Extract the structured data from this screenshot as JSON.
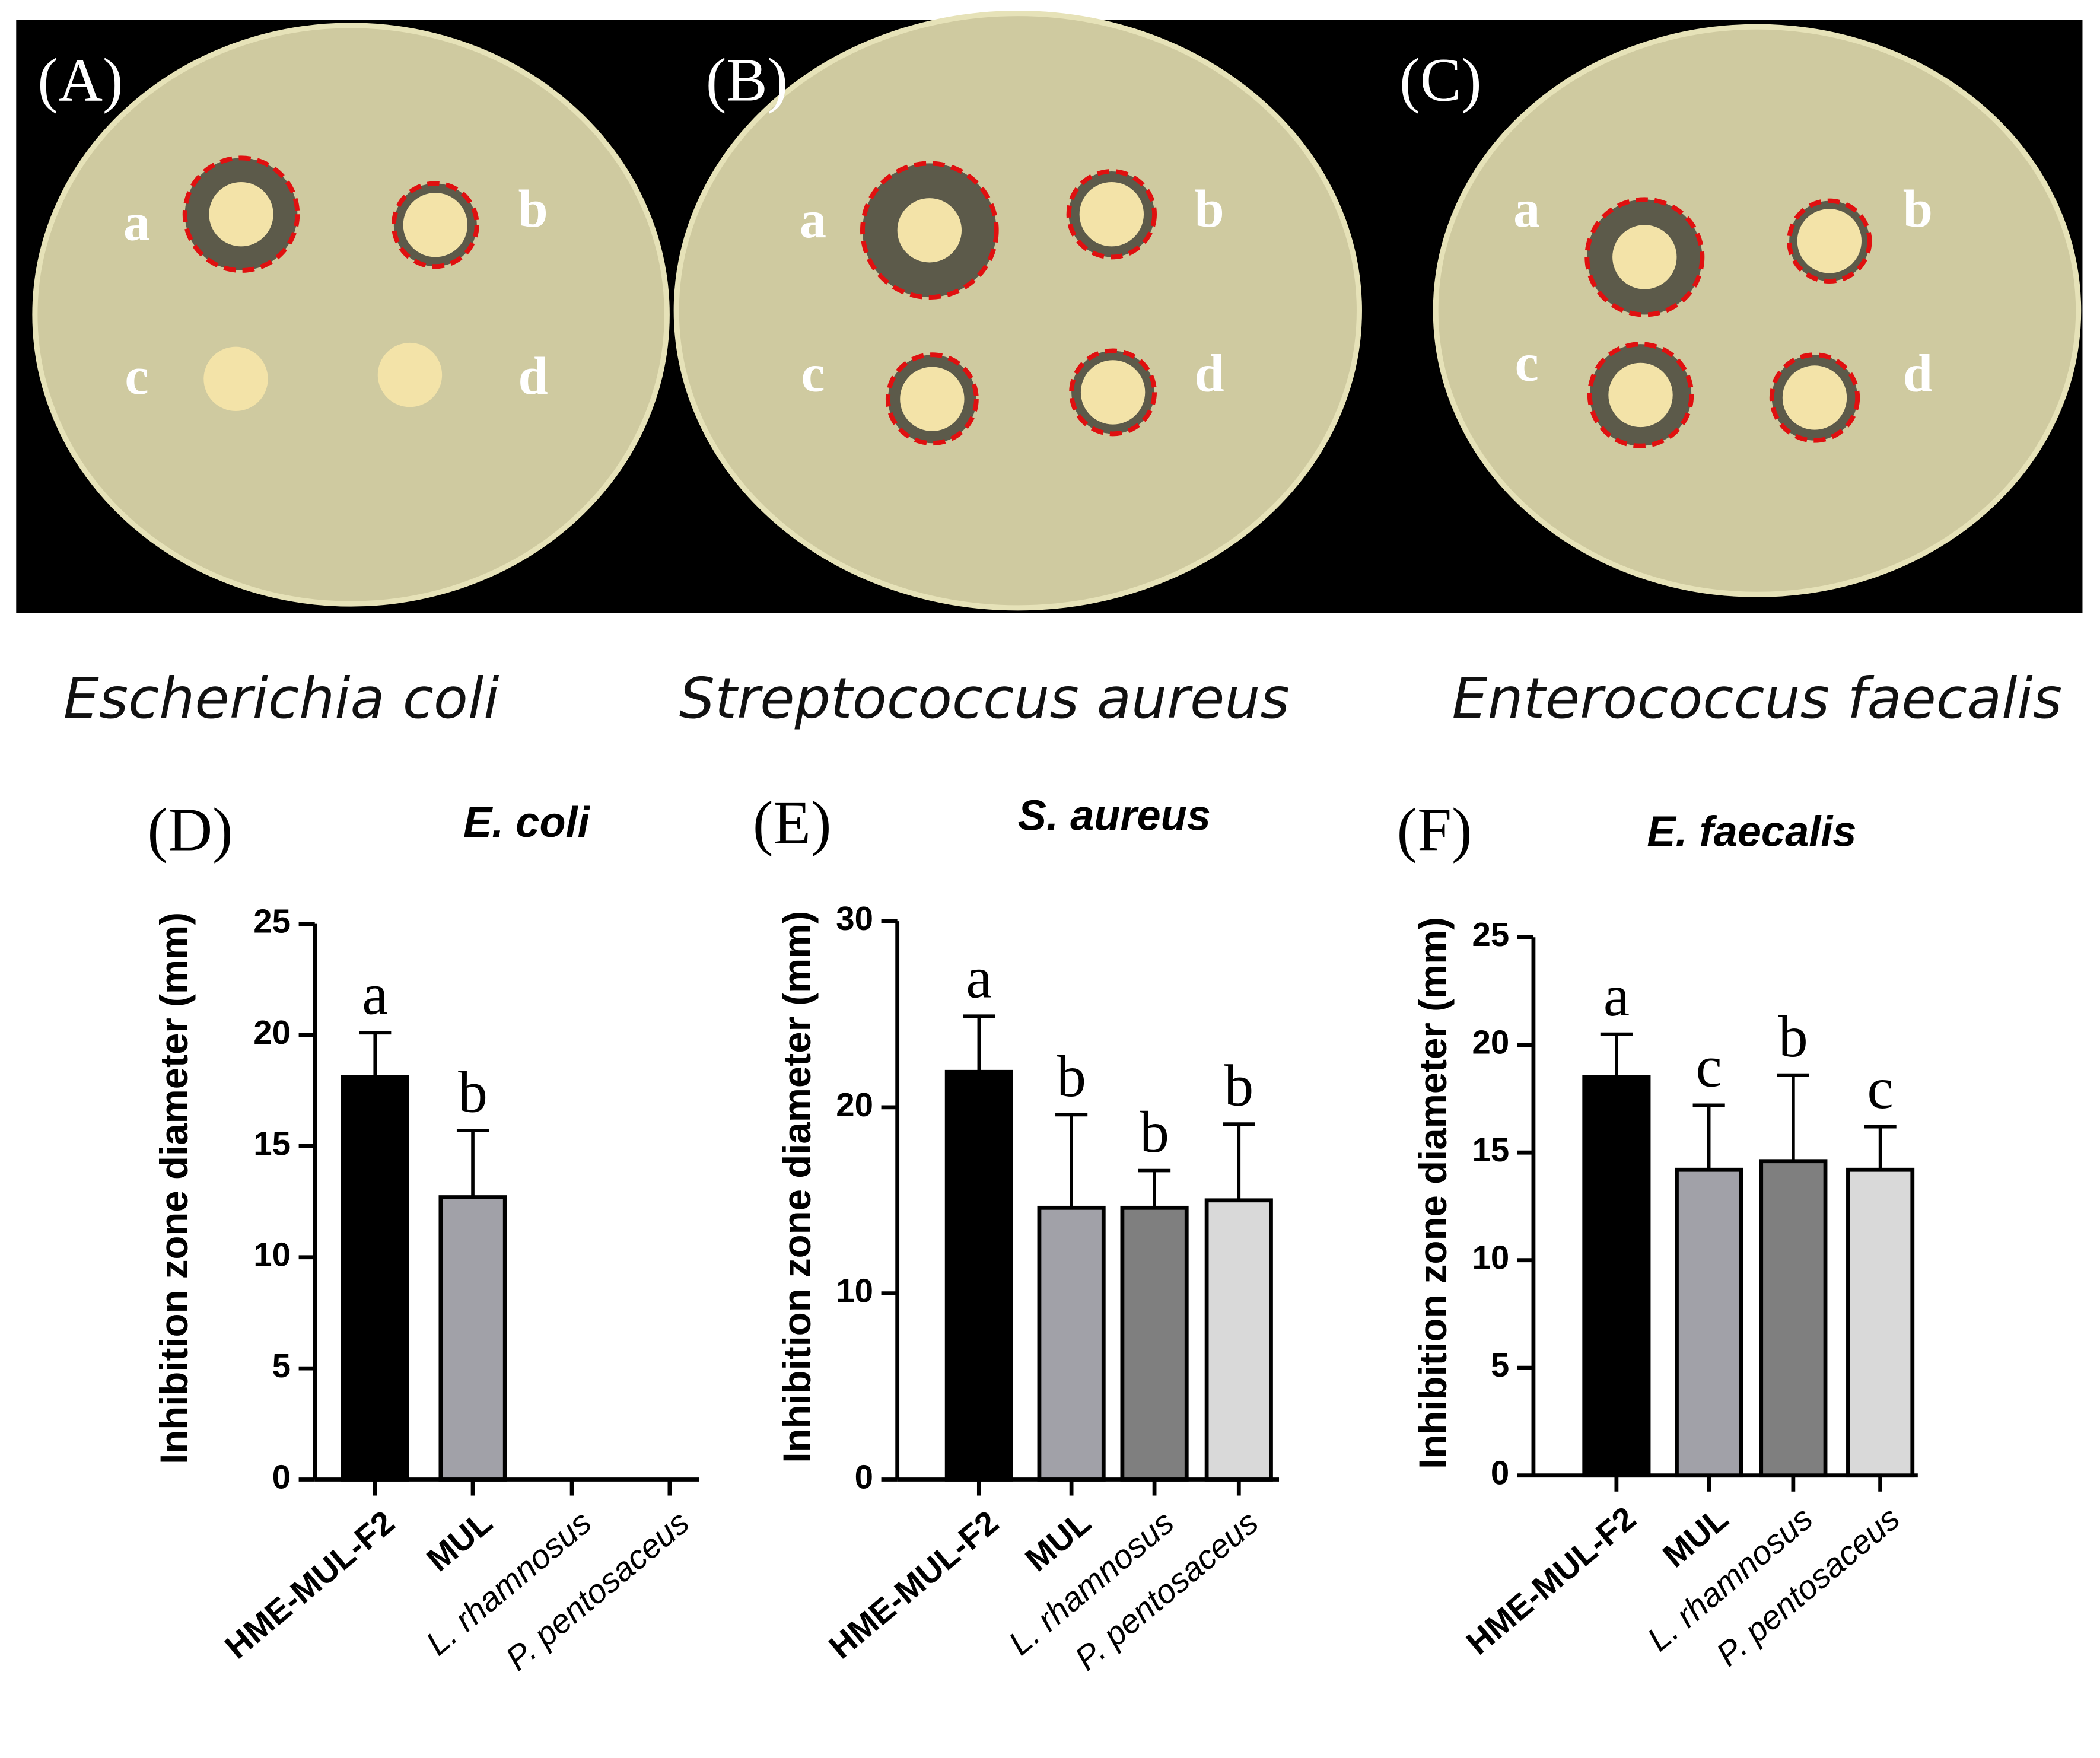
{
  "photos": {
    "panels": [
      {
        "label": "(A)",
        "spots": [
          "a",
          "b",
          "c",
          "d"
        ],
        "caption": "Escherichia coli"
      },
      {
        "label": "(B)",
        "spots": [
          "a",
          "b",
          "c",
          "d"
        ],
        "caption": "Streptococcus aureus"
      },
      {
        "label": "(C)",
        "spots": [
          "a",
          "b",
          "c",
          "d"
        ],
        "caption": "Enterococcus faecalis"
      }
    ]
  },
  "chart_data": [
    {
      "type": "bar",
      "panel_label": "(D)",
      "title": "E. coli",
      "y_label": "Inhibition zone diameter (mm)",
      "categories": [
        "HME-MUL-F2",
        "MUL",
        "L. rhamnosus",
        "P. pentosaceus"
      ],
      "values": [
        18.1,
        12.7,
        0,
        0
      ],
      "errors": [
        2.0,
        3.0,
        0,
        0
      ],
      "annotations": [
        "a",
        "b",
        null,
        null
      ],
      "colors": [
        "#000000",
        "#a1a1a8",
        "#7f7f7f",
        "#d9d9d9"
      ],
      "ylim": [
        0,
        25
      ],
      "yticks": [
        0,
        5,
        10,
        15,
        20,
        25
      ]
    },
    {
      "type": "bar",
      "panel_label": "(E)",
      "title": "S. aureus",
      "y_label": "Inhibition zone diameter (mm)",
      "categories": [
        "HME-MUL-F2",
        "MUL",
        "L. rhamnosus",
        "P. pentosaceus"
      ],
      "values": [
        21.9,
        14.6,
        14.6,
        15.0
      ],
      "errors": [
        3.0,
        5.0,
        2.0,
        4.1
      ],
      "annotations": [
        "a",
        "b",
        "b",
        "b"
      ],
      "colors": [
        "#000000",
        "#a1a1a8",
        "#7f7f7f",
        "#d9d9d9"
      ],
      "ylim": [
        0,
        30
      ],
      "yticks": [
        0,
        10,
        20,
        30
      ]
    },
    {
      "type": "bar",
      "panel_label": "(F)",
      "title": "E. faecalis",
      "y_label": "Inhibition zone diameter (mm)",
      "categories": [
        "HME-MUL-F2",
        "MUL",
        "L. rhamnosus",
        "P. pentosaceus"
      ],
      "values": [
        18.5,
        14.2,
        14.6,
        14.2
      ],
      "errors": [
        2.0,
        3.0,
        4.0,
        2.0
      ],
      "annotations": [
        "a",
        "c",
        "b",
        "c"
      ],
      "colors": [
        "#000000",
        "#a1a1a8",
        "#7f7f7f",
        "#d9d9d9"
      ],
      "ylim": [
        0,
        25
      ],
      "yticks": [
        0,
        5,
        10,
        15,
        20,
        25
      ]
    }
  ]
}
